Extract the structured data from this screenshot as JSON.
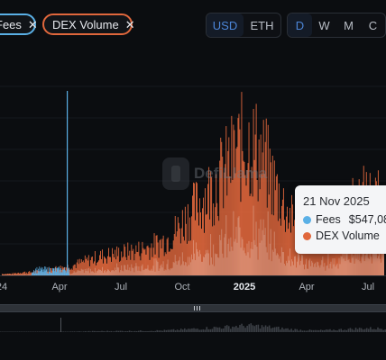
{
  "filters": {
    "fees_label": "Fees",
    "dex_label": "DEX Volume",
    "remove_glyph": "✕"
  },
  "currency": {
    "options": [
      "USD",
      "ETH"
    ],
    "selected": "USD"
  },
  "timeframe": {
    "options": [
      "D",
      "W",
      "M",
      "C"
    ],
    "selected": "D"
  },
  "watermark": {
    "text": "DefiLlama"
  },
  "colors": {
    "fees": "#5ab0e6",
    "dex": "#e0673c",
    "background": "#0b0d10"
  },
  "tooltip": {
    "date": "21 Nov 2025",
    "fees_label": "Fees",
    "fees_value": "$547,08",
    "dex_label": "DEX Volume"
  },
  "chart_data": {
    "type": "bar",
    "x_ticks": [
      "24",
      "Apr",
      "Jul",
      "Oct",
      "2025",
      "Apr",
      "Jul"
    ],
    "series": [
      {
        "name": "Fees",
        "color": "#5ab0e6"
      },
      {
        "name": "DEX Volume",
        "color": "#e0673c"
      }
    ],
    "envelope_dex": [
      0.01,
      0.01,
      0.02,
      0.02,
      0.03,
      0.04,
      0.05,
      0.06,
      0.08,
      0.1,
      0.12,
      0.13,
      0.14,
      0.15,
      0.16,
      0.18,
      0.2,
      0.24,
      0.3,
      0.38,
      0.45,
      0.52,
      0.6,
      0.68,
      0.78,
      0.85,
      0.8,
      0.7,
      0.55,
      0.42,
      0.32,
      0.25,
      0.22,
      0.25,
      0.3,
      0.38,
      0.45,
      0.5,
      0.48,
      0.45
    ],
    "spike_fees": {
      "x_label": "Apr",
      "value": 1.0
    },
    "grid": true,
    "legend": "top-left"
  }
}
